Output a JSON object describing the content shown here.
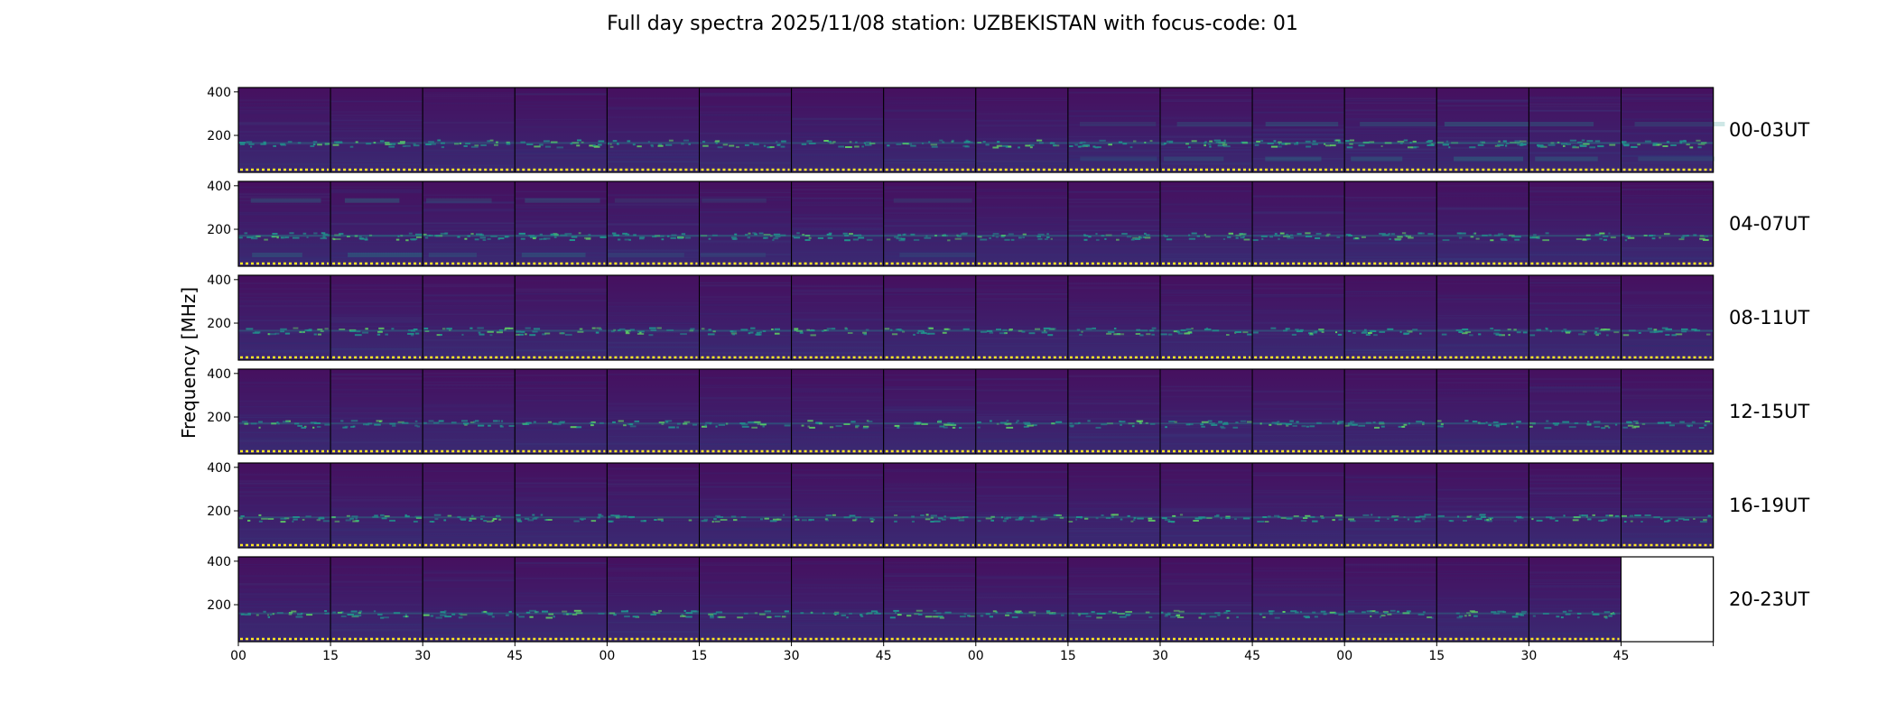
{
  "chart_data": {
    "type": "heatmap",
    "title": "Full day spectra 2025/11/08 station: UZBEKISTAN with focus-code: 01",
    "xlabel": "",
    "ylabel": "Frequency [MHz]",
    "ylim": [
      30,
      420
    ],
    "y_ticks": [
      200,
      400
    ],
    "y_tick_labels": [
      "200",
      "400"
    ],
    "x_tick_labels": [
      "00",
      "15",
      "30",
      "45",
      "00",
      "15",
      "30",
      "45",
      "00",
      "15",
      "30",
      "45",
      "00",
      "15",
      "30",
      "45",
      ""
    ],
    "panels_per_row": 16,
    "minutes_per_panel": 15,
    "colormap": [
      "#440154",
      "#3b528b",
      "#21918c",
      "#5ec962",
      "#fde725"
    ],
    "marker_color": "#fde725",
    "rows": [
      {
        "label": "00-03UT",
        "panel_count": 16,
        "activity": [
          0.3,
          0.3,
          0.3,
          0.3,
          0.3,
          0.35,
          0.2,
          0.35,
          0.3,
          0.5,
          0.55,
          0.6,
          0.6,
          0.65,
          0.6,
          0.55
        ],
        "band_freq": 165,
        "extra_freq": [
          250,
          90
        ]
      },
      {
        "label": "04-07UT",
        "panel_count": 16,
        "activity": [
          0.6,
          0.65,
          0.55,
          0.6,
          0.5,
          0.5,
          0.45,
          0.5,
          0.45,
          0.45,
          0.4,
          0.35,
          0.4,
          0.4,
          0.4,
          0.35
        ],
        "band_freq": 170,
        "extra_freq": [
          330,
          80
        ]
      },
      {
        "label": "08-11UT",
        "panel_count": 16,
        "activity": [
          0.35,
          0.35,
          0.3,
          0.35,
          0.3,
          0.35,
          0.35,
          0.35,
          0.3,
          0.3,
          0.35,
          0.3,
          0.35,
          0.3,
          0.35,
          0.3
        ],
        "band_freq": 165,
        "extra_freq": [
          240
        ]
      },
      {
        "label": "12-15UT",
        "panel_count": 16,
        "activity": [
          0.3,
          0.3,
          0.3,
          0.2,
          0.2,
          0.25,
          0.2,
          0.3,
          0.3,
          0.3,
          0.35,
          0.35,
          0.3,
          0.3,
          0.35,
          0.3
        ],
        "band_freq": 170,
        "extra_freq": [
          280
        ]
      },
      {
        "label": "16-19UT",
        "panel_count": 16,
        "activity": [
          0.3,
          0.35,
          0.35,
          0.3,
          0.25,
          0.25,
          0.25,
          0.3,
          0.3,
          0.3,
          0.3,
          0.3,
          0.3,
          0.3,
          0.3,
          0.3
        ],
        "band_freq": 170,
        "extra_freq": [
          240
        ]
      },
      {
        "label": "20-23UT",
        "panel_count": 15,
        "activity": [
          0.3,
          0.3,
          0.3,
          0.3,
          0.3,
          0.25,
          0.25,
          0.3,
          0.3,
          0.3,
          0.3,
          0.3,
          0.3,
          0.3,
          0.3
        ],
        "band_freq": 160,
        "extra_freq": []
      }
    ]
  }
}
